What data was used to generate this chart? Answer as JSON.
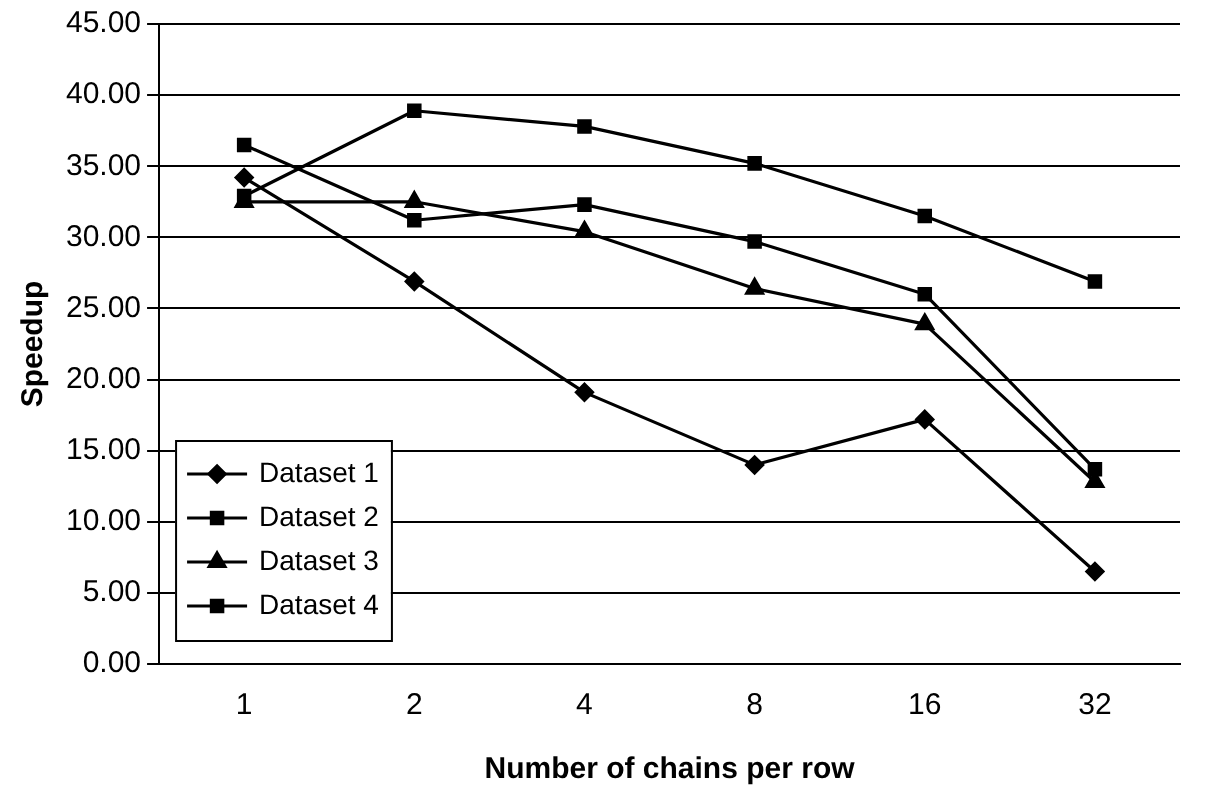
{
  "chart_data": {
    "type": "line",
    "xlabel": "Number of chains per row",
    "ylabel": "Speedup",
    "categories": [
      "1",
      "2",
      "4",
      "8",
      "16",
      "32"
    ],
    "series": [
      {
        "name": "Dataset 1",
        "color": "#000000",
        "marker": "diamond",
        "values": [
          34.2,
          26.9,
          19.1,
          14.0,
          17.2,
          6.5
        ]
      },
      {
        "name": "Dataset 2",
        "color": "#000000",
        "marker": "square",
        "values": [
          36.5,
          31.2,
          32.3,
          29.7,
          26.0,
          13.7
        ]
      },
      {
        "name": "Dataset 3",
        "color": "#000000",
        "marker": "triangle",
        "values": [
          32.5,
          32.5,
          30.4,
          26.4,
          23.9,
          12.8
        ]
      },
      {
        "name": "Dataset 4",
        "color": "#000000",
        "marker": "square",
        "values": [
          32.9,
          38.9,
          37.8,
          35.2,
          31.5,
          26.9
        ]
      }
    ],
    "ylim": [
      0,
      45
    ],
    "yticks": [
      {
        "value": 0,
        "label": "0.00"
      },
      {
        "value": 5,
        "label": "5.00"
      },
      {
        "value": 10,
        "label": "10.00"
      },
      {
        "value": 15,
        "label": "15.00"
      },
      {
        "value": 20,
        "label": "20.00"
      },
      {
        "value": 25,
        "label": "25.00"
      },
      {
        "value": 30,
        "label": "30.00"
      },
      {
        "value": 35,
        "label": "35.00"
      },
      {
        "value": 40,
        "label": "40.00"
      },
      {
        "value": 45,
        "label": "45.00"
      }
    ],
    "grid": "y",
    "legend": "bottom left",
    "line_style": "solid"
  }
}
